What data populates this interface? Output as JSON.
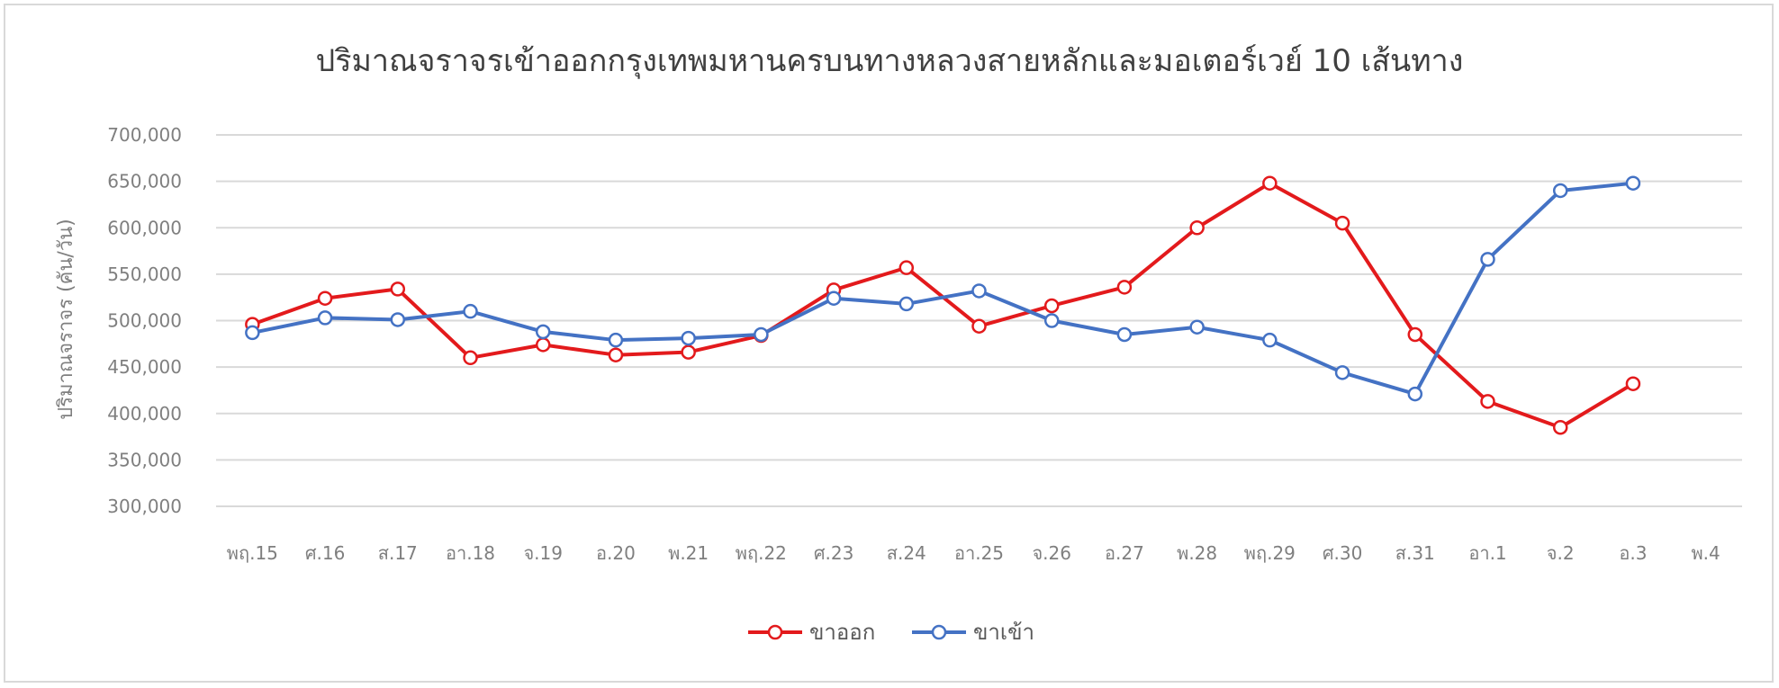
{
  "chart_data": {
    "type": "line",
    "title": "ปริมาณจราจรเข้าออกกรุงเทพมหานครบนทางหลวงสายหลักและมอเตอร์เวย์ 10 เส้นทาง",
    "ylabel": "ปริมาณจราจร (คัน/วัน)",
    "xlabel": "",
    "ylim": [
      300000,
      700000
    ],
    "yticks": [
      300000,
      350000,
      400000,
      450000,
      500000,
      550000,
      600000,
      650000,
      700000
    ],
    "ytick_labels": [
      "300,000",
      "350,000",
      "400,000",
      "450,000",
      "500,000",
      "550,000",
      "600,000",
      "650,000",
      "700,000"
    ],
    "grid": true,
    "legend_position": "bottom",
    "categories": [
      "พฤ.15",
      "ศ.16",
      "ส.17",
      "อา.18",
      "จ.19",
      "อ.20",
      "พ.21",
      "พฤ.22",
      "ศ.23",
      "ส.24",
      "อา.25",
      "จ.26",
      "อ.27",
      "พ.28",
      "พฤ.29",
      "ศ.30",
      "ส.31",
      "อา.1",
      "จ.2",
      "อ.3",
      "พ.4"
    ],
    "series": [
      {
        "name": "ขาออก",
        "color": "#e31a1c",
        "values": [
          496000,
          524000,
          534000,
          460000,
          474000,
          463000,
          466000,
          484000,
          533000,
          557000,
          494000,
          516000,
          536000,
          600000,
          648000,
          605000,
          485000,
          413000,
          385000,
          432000,
          null
        ]
      },
      {
        "name": "ขาเข้า",
        "color": "#4472c4",
        "values": [
          487000,
          503000,
          501000,
          510000,
          488000,
          479000,
          481000,
          485000,
          524000,
          518000,
          532000,
          500000,
          485000,
          493000,
          479000,
          444000,
          421000,
          566000,
          640000,
          648000,
          null
        ]
      }
    ]
  }
}
